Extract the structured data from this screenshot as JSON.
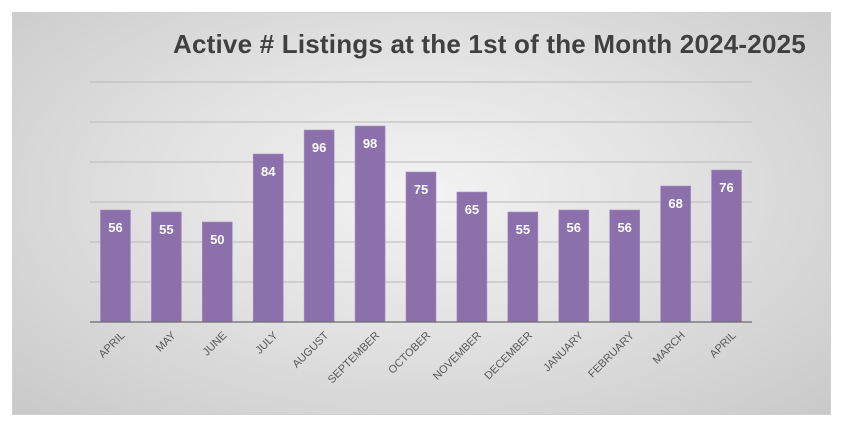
{
  "chart_data": {
    "type": "bar",
    "title": "Active # Listings at the 1st of the Month 2024-2025",
    "xlabel": "",
    "ylabel": "",
    "categories": [
      "APRIL",
      "MAY",
      "JUNE",
      "JULY",
      "AUGUST",
      "SEPTEMBER",
      "OCTOBER",
      "NOVEMBER",
      "DECEMBER",
      "JANUARY",
      "FEBRUARY",
      "MARCH",
      "APRIL"
    ],
    "values": [
      56,
      55,
      50,
      84,
      96,
      98,
      75,
      65,
      55,
      56,
      56,
      68,
      76
    ],
    "ylim": [
      0,
      120
    ],
    "grid": true,
    "legend": "none",
    "bar_color": "#8c70ac",
    "label_color": "#ffffff",
    "gridline_color": "#b8b8b8",
    "axis_color": "#6b6b6b",
    "tick_label_color": "#595959"
  }
}
